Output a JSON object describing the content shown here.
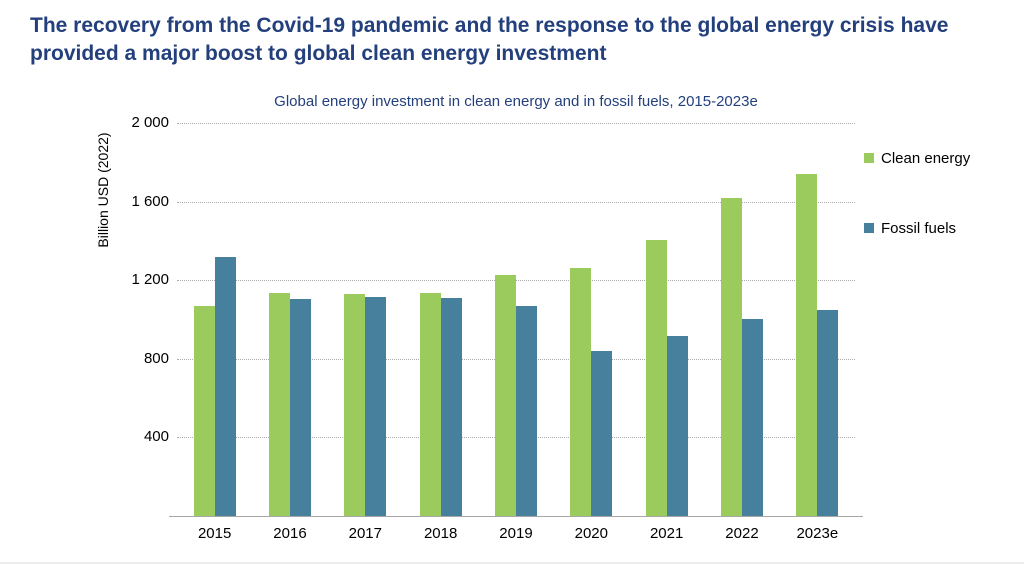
{
  "page": {
    "title": "The recovery from the Covid-19 pandemic and the response to the global energy crisis have provided a major boost to global clean energy investment",
    "title_color": "#23407d",
    "background": "#ffffff"
  },
  "chart_data": {
    "type": "bar",
    "title": "Global energy investment in clean energy and in fossil fuels, 2015-2023e",
    "title_color": "#23407d",
    "xlabel": "",
    "ylabel": "Billion USD (2022)",
    "categories": [
      "2015",
      "2016",
      "2017",
      "2018",
      "2019",
      "2020",
      "2021",
      "2022",
      "2023e"
    ],
    "series": [
      {
        "name": "Clean energy",
        "color": "#9ccb5d",
        "values": [
          1070,
          1135,
          1130,
          1135,
          1225,
          1260,
          1405,
          1620,
          1740
        ]
      },
      {
        "name": "Fossil fuels",
        "color": "#47809d",
        "values": [
          1320,
          1105,
          1115,
          1110,
          1070,
          840,
          915,
          1005,
          1050
        ]
      }
    ],
    "ylim": [
      0,
      2000
    ],
    "yticks": [
      2000,
      1600,
      1200,
      800,
      400
    ],
    "ytick_labels": [
      "2 000",
      "1 600",
      "1 200",
      "800",
      "400"
    ],
    "grid": "horizontal-dotted",
    "gridline_color": "#ababab",
    "axis_line_color": "#a6a6a6",
    "text_color": "#000000",
    "legend_position": "right"
  }
}
